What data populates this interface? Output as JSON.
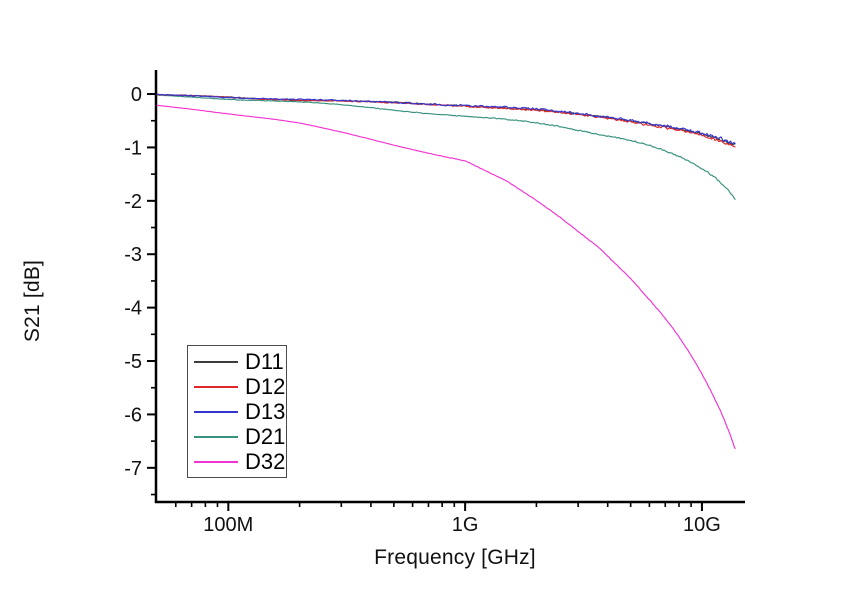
{
  "figure": {
    "background": "#ffffff",
    "axis_color": "#000000",
    "text_color": "#111111"
  },
  "chart_data": {
    "type": "line",
    "title": "",
    "xlabel": "Frequency [GHz]",
    "ylabel": "S21 [dB]",
    "x_scale": "log",
    "grid": "off",
    "legend_position": "lower-left",
    "xlim_ghz": [
      0.0495,
      15.2
    ],
    "ylim_db": [
      -7.64,
      0.45
    ],
    "x_major_ticks": [
      {
        "value_ghz": 0.1,
        "label": "100M"
      },
      {
        "value_ghz": 1,
        "label": "1G"
      },
      {
        "value_ghz": 10,
        "label": "10G"
      }
    ],
    "x_minor_ticks_ghz": [
      0.06,
      0.07,
      0.08,
      0.09,
      0.2,
      0.3,
      0.4,
      0.5,
      0.6,
      0.7,
      0.8,
      0.9,
      2,
      3,
      4,
      5,
      6,
      7,
      8,
      9
    ],
    "y_major_ticks": [
      {
        "value": 0,
        "label": "0"
      },
      {
        "value": -1,
        "label": "-1"
      },
      {
        "value": -2,
        "label": "-2"
      },
      {
        "value": -3,
        "label": "-3"
      },
      {
        "value": -4,
        "label": "-4"
      },
      {
        "value": -5,
        "label": "-5"
      },
      {
        "value": -6,
        "label": "-6"
      },
      {
        "value": -7,
        "label": "-7"
      }
    ],
    "y_minor_ticks": [
      -0.5,
      -1.5,
      -2.5,
      -3.5,
      -4.5,
      -5.5,
      -6.5,
      -7.5
    ],
    "series": [
      {
        "name": "D11",
        "color": "#3c3c3c",
        "noise_db": 0.03,
        "seed": 101,
        "points": [
          [
            0.05,
            -0.02
          ],
          [
            0.07,
            -0.04
          ],
          [
            0.1,
            -0.06
          ],
          [
            0.15,
            -0.09
          ],
          [
            0.2,
            -0.11
          ],
          [
            0.3,
            -0.13
          ],
          [
            0.5,
            -0.16
          ],
          [
            0.7,
            -0.19
          ],
          [
            1,
            -0.21
          ],
          [
            1.5,
            -0.26
          ],
          [
            2,
            -0.3
          ],
          [
            3,
            -0.38
          ],
          [
            4,
            -0.44
          ],
          [
            5,
            -0.5
          ],
          [
            7,
            -0.6
          ],
          [
            8.5,
            -0.67
          ],
          [
            10,
            -0.75
          ],
          [
            12,
            -0.86
          ],
          [
            13.8,
            -0.96
          ]
        ]
      },
      {
        "name": "D12",
        "color": "#e02828",
        "noise_db": 0.03,
        "seed": 202,
        "points": [
          [
            0.05,
            -0.02
          ],
          [
            0.07,
            -0.04
          ],
          [
            0.1,
            -0.06
          ],
          [
            0.15,
            -0.09
          ],
          [
            0.2,
            -0.11
          ],
          [
            0.3,
            -0.14
          ],
          [
            0.5,
            -0.17
          ],
          [
            0.7,
            -0.19
          ],
          [
            1,
            -0.22
          ],
          [
            1.5,
            -0.27
          ],
          [
            2,
            -0.31
          ],
          [
            3,
            -0.39
          ],
          [
            4,
            -0.45
          ],
          [
            5,
            -0.52
          ],
          [
            7,
            -0.62
          ],
          [
            8.5,
            -0.69
          ],
          [
            10,
            -0.77
          ],
          [
            12,
            -0.89
          ],
          [
            13.8,
            -0.99
          ]
        ]
      },
      {
        "name": "D13",
        "color": "#3535cf",
        "noise_db": 0.038,
        "seed": 303,
        "points": [
          [
            0.05,
            -0.02
          ],
          [
            0.07,
            -0.04
          ],
          [
            0.1,
            -0.06
          ],
          [
            0.15,
            -0.08
          ],
          [
            0.2,
            -0.1
          ],
          [
            0.3,
            -0.13
          ],
          [
            0.5,
            -0.16
          ],
          [
            0.7,
            -0.18
          ],
          [
            1,
            -0.21
          ],
          [
            1.5,
            -0.25
          ],
          [
            2,
            -0.29
          ],
          [
            3,
            -0.37
          ],
          [
            4,
            -0.43
          ],
          [
            5,
            -0.49
          ],
          [
            7,
            -0.59
          ],
          [
            8.5,
            -0.66
          ],
          [
            10,
            -0.74
          ],
          [
            12,
            -0.84
          ],
          [
            13.8,
            -0.94
          ]
        ]
      },
      {
        "name": "D21",
        "color": "#37917f",
        "noise_db": 0.02,
        "seed": 404,
        "points": [
          [
            0.05,
            -0.03
          ],
          [
            0.07,
            -0.06
          ],
          [
            0.1,
            -0.09
          ],
          [
            0.15,
            -0.12
          ],
          [
            0.2,
            -0.15
          ],
          [
            0.3,
            -0.21
          ],
          [
            0.5,
            -0.3
          ],
          [
            0.7,
            -0.36
          ],
          [
            1,
            -0.41
          ],
          [
            1.5,
            -0.48
          ],
          [
            2,
            -0.55
          ],
          [
            2.5,
            -0.61
          ],
          [
            3,
            -0.68
          ],
          [
            4,
            -0.78
          ],
          [
            5,
            -0.86
          ],
          [
            6,
            -0.96
          ],
          [
            7,
            -1.06
          ],
          [
            8,
            -1.17
          ],
          [
            9,
            -1.28
          ],
          [
            10,
            -1.4
          ],
          [
            11,
            -1.53
          ],
          [
            12,
            -1.66
          ],
          [
            13,
            -1.81
          ],
          [
            13.8,
            -1.98
          ]
        ]
      },
      {
        "name": "D32",
        "color": "#f332d4",
        "noise_db": 0.01,
        "seed": 505,
        "points": [
          [
            0.05,
            -0.22
          ],
          [
            0.07,
            -0.28
          ],
          [
            0.1,
            -0.36
          ],
          [
            0.15,
            -0.46
          ],
          [
            0.2,
            -0.55
          ],
          [
            0.3,
            -0.72
          ],
          [
            0.5,
            -0.95
          ],
          [
            0.7,
            -1.1
          ],
          [
            1,
            -1.25
          ],
          [
            1.5,
            -1.64
          ],
          [
            2,
            -2.0
          ],
          [
            2.5,
            -2.3
          ],
          [
            3,
            -2.57
          ],
          [
            3.7,
            -2.88
          ],
          [
            5,
            -3.45
          ],
          [
            6,
            -3.85
          ],
          [
            7,
            -4.2
          ],
          [
            8,
            -4.55
          ],
          [
            9,
            -4.9
          ],
          [
            10,
            -5.25
          ],
          [
            11,
            -5.6
          ],
          [
            12,
            -5.95
          ],
          [
            13,
            -6.32
          ],
          [
            13.8,
            -6.65
          ]
        ]
      }
    ]
  }
}
